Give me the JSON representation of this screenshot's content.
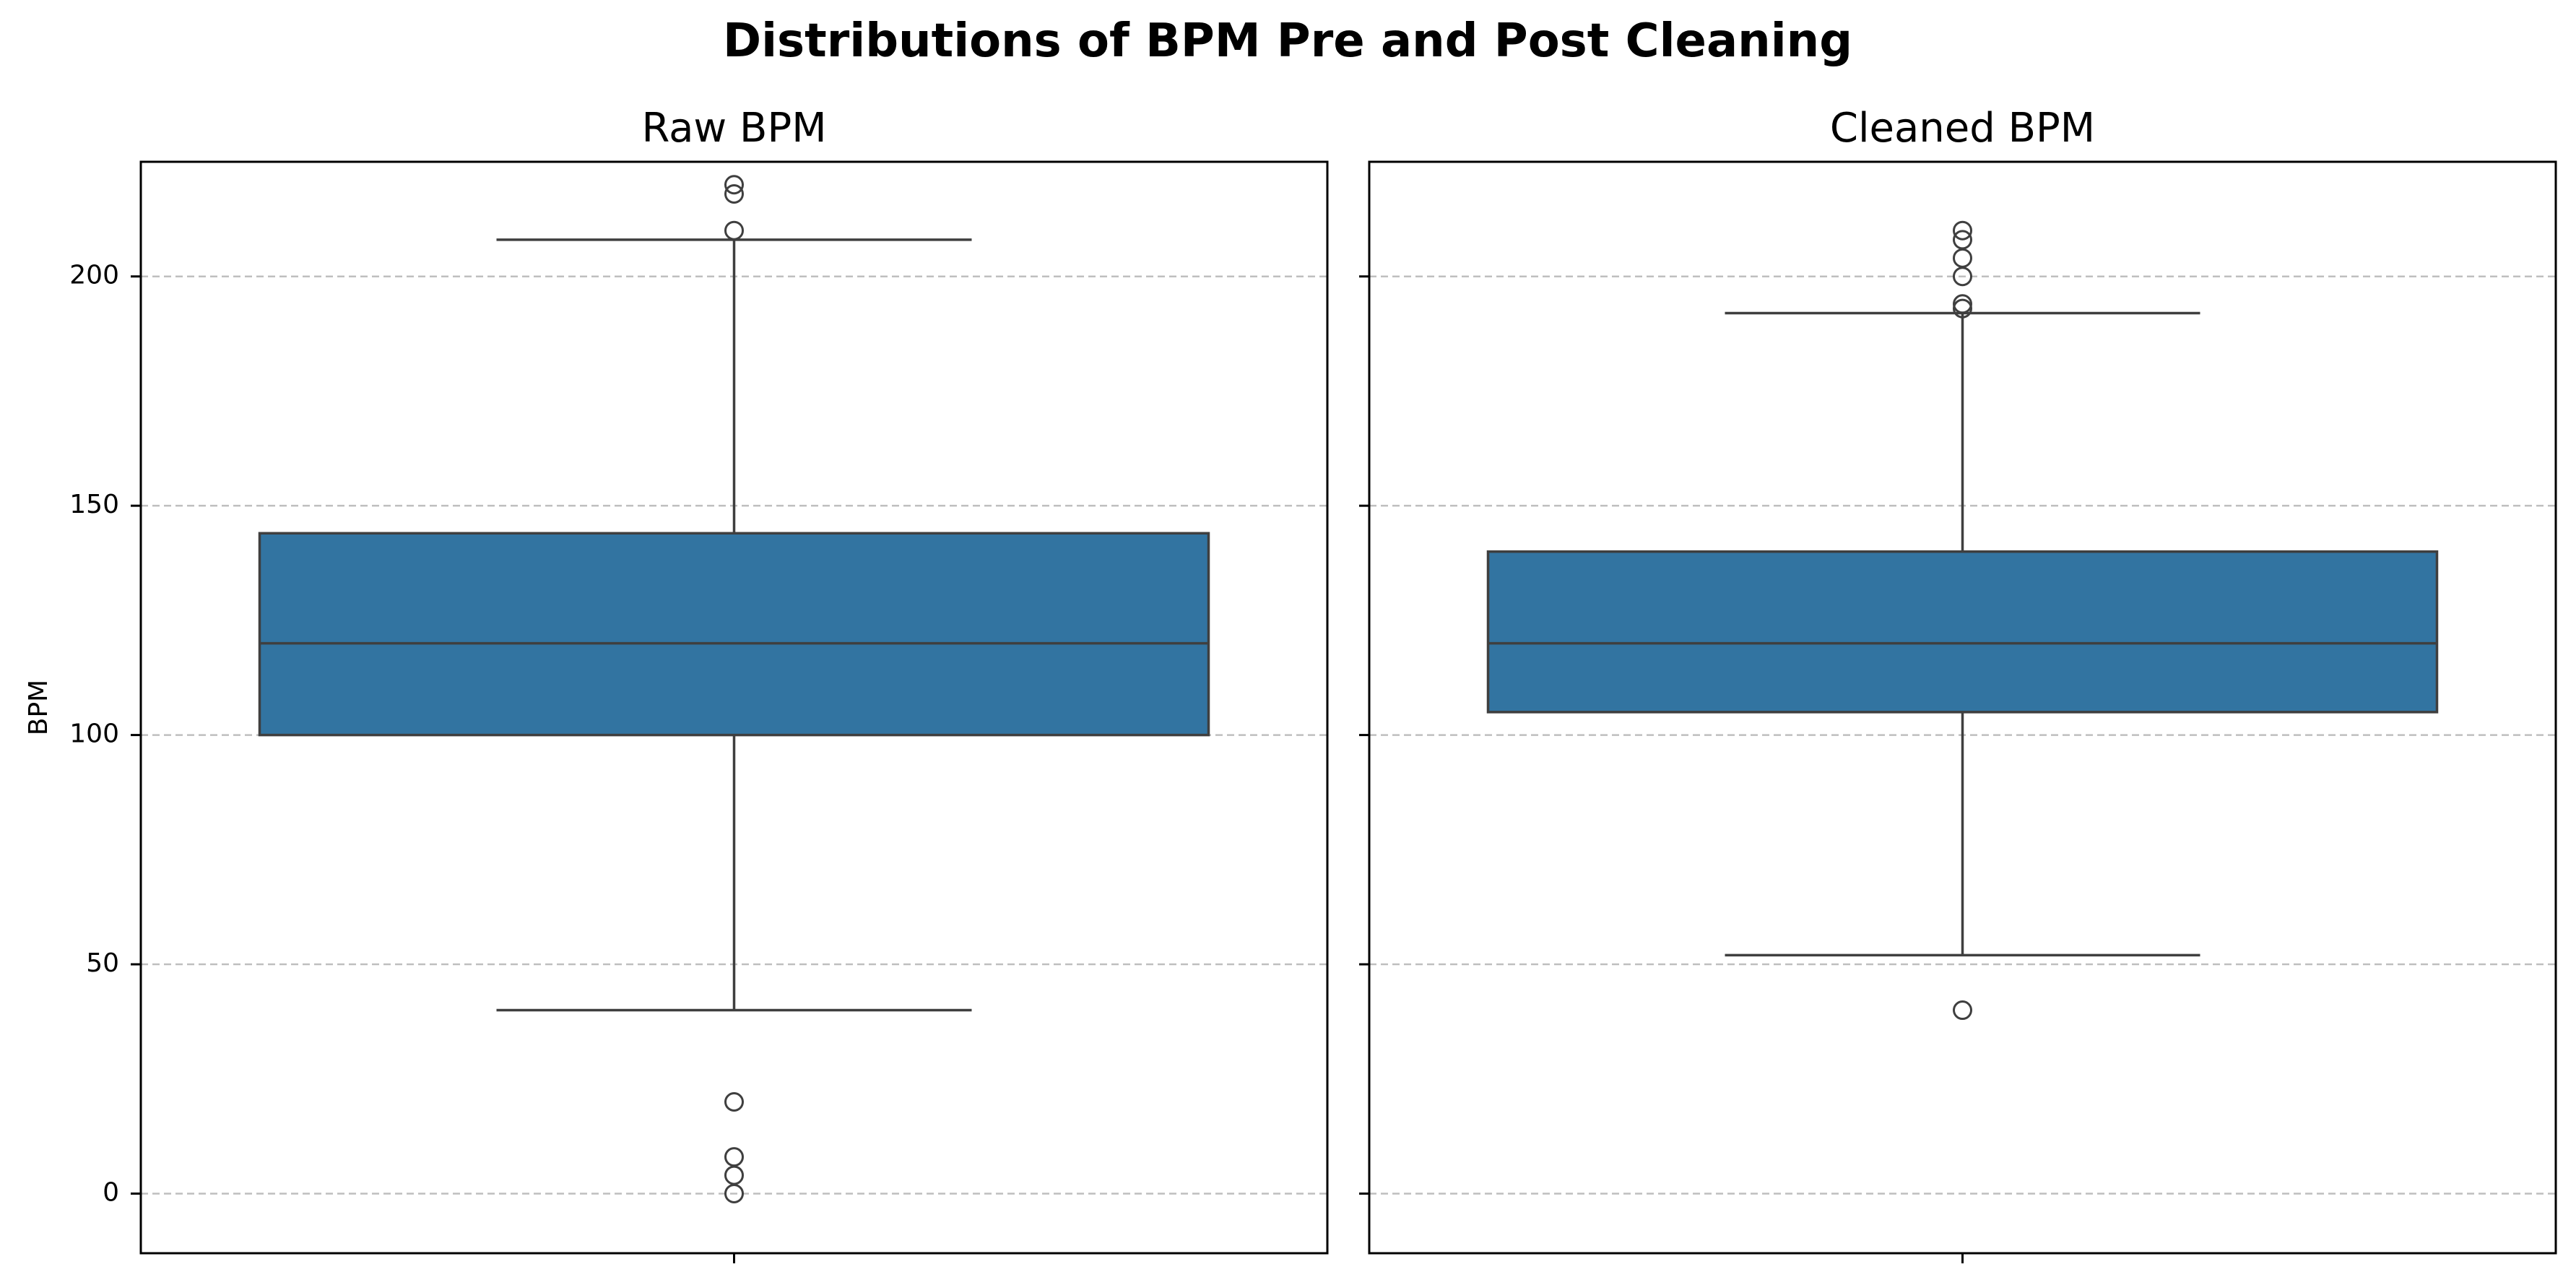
{
  "title": "Distributions of BPM Pre and Post Cleaning",
  "colors": {
    "box_fill": "#3274a1",
    "line": "#3f3f3f",
    "grid": "#bfbfbf",
    "frame": "#000000"
  },
  "chart_data": [
    {
      "type": "box",
      "title": "Raw BPM",
      "ylabel": "BPM",
      "xlabel": "",
      "ylim": [
        -13,
        225
      ],
      "yticks": [
        0,
        50,
        100,
        150,
        200
      ],
      "grid": "y-dashed",
      "stats": {
        "whisker_low": 40,
        "q1": 100,
        "median": 120,
        "q3": 144,
        "whisker_high": 208
      },
      "outliers": [
        0,
        4,
        8,
        20,
        210,
        218,
        220
      ]
    },
    {
      "type": "box",
      "title": "Cleaned BPM",
      "ylabel": "",
      "xlabel": "",
      "ylim": [
        -13,
        225
      ],
      "yticks": [
        0,
        50,
        100,
        150,
        200
      ],
      "grid": "y-dashed",
      "stats": {
        "whisker_low": 52,
        "q1": 105,
        "median": 120,
        "q3": 140,
        "whisker_high": 192
      },
      "outliers": [
        40,
        193,
        194,
        200,
        204,
        208,
        210
      ]
    }
  ]
}
